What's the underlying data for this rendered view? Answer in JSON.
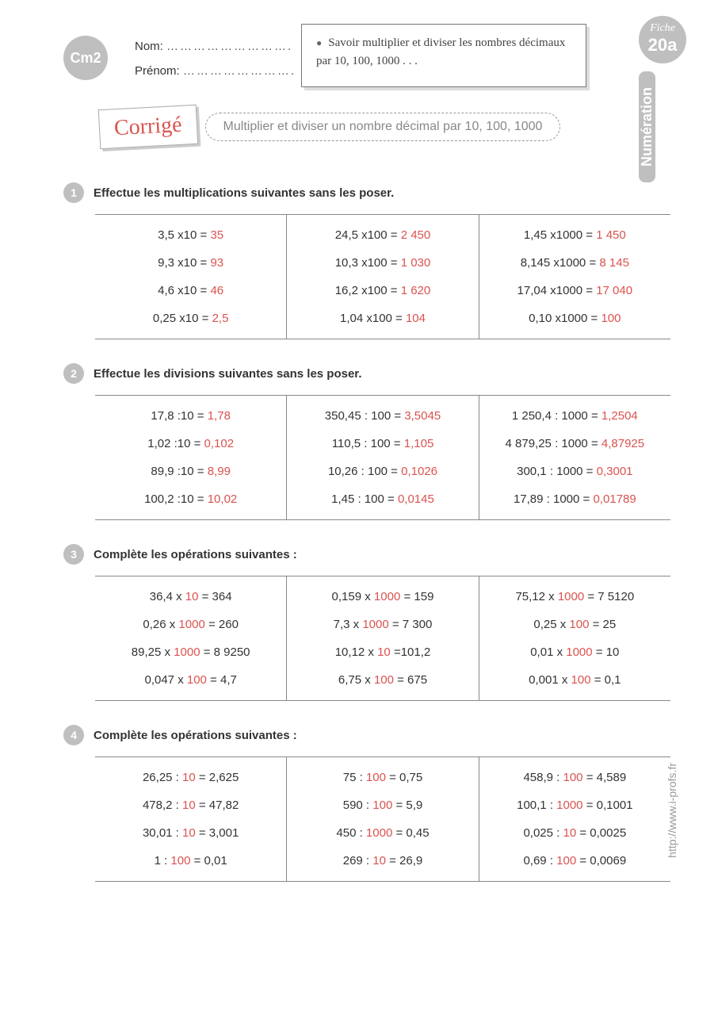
{
  "grade_badge": "Cm2",
  "name_label": "Nom:",
  "firstname_label": "Prénom:",
  "dots": "……………………….",
  "dots2": "…………………….",
  "objective": "Savoir multiplier et diviser les nombres décimaux par 10, 100, 1000 . . .",
  "fiche_label": "Fiche",
  "fiche_num": "20a",
  "subject": "Numération",
  "corrige": "Corrigé",
  "title": "Multiplier et diviser un nombre décimal par 10, 100, 1000",
  "footer_url": "http://www.i-profs.fr",
  "colors": {
    "answer": "#d9534f",
    "badge": "#bfbfbf"
  },
  "ex1": {
    "title": "Effectue les multiplications suivantes sans les poser.",
    "cols": [
      [
        {
          "q": "3,5 x10 = ",
          "a": "35"
        },
        {
          "q": "9,3 x10 = ",
          "a": "93"
        },
        {
          "q": "4,6 x10 = ",
          "a": "46"
        },
        {
          "q": "0,25 x10 = ",
          "a": "2,5"
        }
      ],
      [
        {
          "q": "24,5 x100 = ",
          "a": "2 450"
        },
        {
          "q": "10,3 x100 = ",
          "a": "1 030"
        },
        {
          "q": "16,2 x100 = ",
          "a": "1 620"
        },
        {
          "q": "1,04 x100 = ",
          "a": "104"
        }
      ],
      [
        {
          "q": "1,45 x1000 = ",
          "a": "1 450"
        },
        {
          "q": "8,145 x1000 = ",
          "a": "8 145"
        },
        {
          "q": "17,04 x1000 = ",
          "a": "17 040"
        },
        {
          "q": "0,10 x1000 = ",
          "a": "100"
        }
      ]
    ]
  },
  "ex2": {
    "title": "Effectue les divisions suivantes sans les poser.",
    "cols": [
      [
        {
          "q": "17,8 :10 = ",
          "a": "1,78"
        },
        {
          "q": "1,02 :10 = ",
          "a": "0,102"
        },
        {
          "q": "89,9 :10 = ",
          "a": "8,99"
        },
        {
          "q": "100,2 :10 = ",
          "a": "10,02"
        }
      ],
      [
        {
          "q": "350,45 : 100 = ",
          "a": "3,5045"
        },
        {
          "q": "110,5 : 100 = ",
          "a": "1,105"
        },
        {
          "q": "10,26 : 100 = ",
          "a": "0,1026"
        },
        {
          "q": "1,45 : 100 = ",
          "a": "0,0145"
        }
      ],
      [
        {
          "q": "1 250,4 : 1000 = ",
          "a": "1,2504"
        },
        {
          "q": "4 879,25 : 1000 = ",
          "a": "4,87925"
        },
        {
          "q": "300,1 : 1000 = ",
          "a": "0,3001"
        },
        {
          "q": "17,89 : 1000 = ",
          "a": "0,01789"
        }
      ]
    ]
  },
  "ex3": {
    "title": "Complète les opérations suivantes :",
    "cols": [
      [
        {
          "p1": "36,4 x ",
          "a": "10",
          "p2": " = 364"
        },
        {
          "p1": "0,26 x ",
          "a": "1000",
          "p2": " =  260"
        },
        {
          "p1": "89,25 x ",
          "a": "1000",
          "p2": " = 8 9250"
        },
        {
          "p1": "0,047 x ",
          "a": "100",
          "p2": " = 4,7"
        }
      ],
      [
        {
          "p1": "0,159 x ",
          "a": "1000",
          "p2": " =  159"
        },
        {
          "p1": "7,3 x ",
          "a": "1000",
          "p2": " =  7 300"
        },
        {
          "p1": "10,12 x ",
          "a": "10",
          "p2": " =101,2"
        },
        {
          "p1": "6,75 x ",
          "a": "100",
          "p2": " =  675"
        }
      ],
      [
        {
          "p1": "75,12 x ",
          "a": "1000",
          "p2": " = 7 5120"
        },
        {
          "p1": "0,25 x ",
          "a": "100",
          "p2": " =  25"
        },
        {
          "p1": "0,01 x ",
          "a": "1000",
          "p2": " = 10"
        },
        {
          "p1": "0,001 x ",
          "a": "100",
          "p2": " = 0,1"
        }
      ]
    ]
  },
  "ex4": {
    "title": "Complète les opérations suivantes :",
    "cols": [
      [
        {
          "p1": "26,25 : ",
          "a": "10",
          "p2": " = 2,625"
        },
        {
          "p1": "478,2 : ",
          "a": "10",
          "p2": " = 47,82"
        },
        {
          "p1": "30,01 : ",
          "a": "10",
          "p2": " = 3,001"
        },
        {
          "p1": "1 : ",
          "a": "100",
          "p2": " = 0,01"
        }
      ],
      [
        {
          "p1": "75 : ",
          "a": "100",
          "p2": " = 0,75"
        },
        {
          "p1": "590 : ",
          "a": "100",
          "p2": " = 5,9"
        },
        {
          "p1": "450 : ",
          "a": "1000",
          "p2": " = 0,45"
        },
        {
          "p1": "269 : ",
          "a": "10",
          "p2": " = 26,9"
        }
      ],
      [
        {
          "p1": "458,9 : ",
          "a": "100",
          "p2": " = 4,589"
        },
        {
          "p1": "100,1 : ",
          "a": "1000",
          "p2": " = 0,1001"
        },
        {
          "p1": "0,025 : ",
          "a": "10",
          "p2": " = 0,0025"
        },
        {
          "p1": "0,69 : ",
          "a": "100",
          "p2": " = 0,0069"
        }
      ]
    ]
  }
}
